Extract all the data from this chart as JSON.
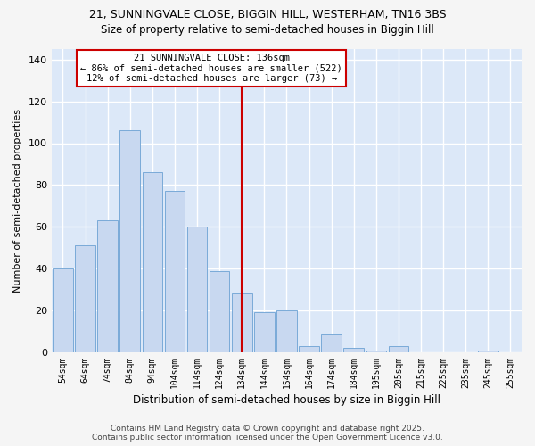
{
  "title1": "21, SUNNINGVALE CLOSE, BIGGIN HILL, WESTERHAM, TN16 3BS",
  "title2": "Size of property relative to semi-detached houses in Biggin Hill",
  "xlabel": "Distribution of semi-detached houses by size in Biggin Hill",
  "ylabel": "Number of semi-detached properties",
  "categories": [
    "54sqm",
    "64sqm",
    "74sqm",
    "84sqm",
    "94sqm",
    "104sqm",
    "114sqm",
    "124sqm",
    "134sqm",
    "144sqm",
    "154sqm",
    "164sqm",
    "174sqm",
    "184sqm",
    "195sqm",
    "205sqm",
    "215sqm",
    "225sqm",
    "235sqm",
    "245sqm",
    "255sqm"
  ],
  "values": [
    40,
    51,
    63,
    106,
    86,
    77,
    60,
    39,
    28,
    19,
    20,
    3,
    9,
    2,
    1,
    3,
    0,
    0,
    0,
    1,
    0
  ],
  "bar_color": "#c8d8f0",
  "bar_edge_color": "#7aaad8",
  "plot_bg_color": "#dce8f8",
  "fig_bg_color": "#f5f5f5",
  "grid_color": "#ffffff",
  "ylim": [
    0,
    145
  ],
  "yticks": [
    0,
    20,
    40,
    60,
    80,
    100,
    120,
    140
  ],
  "property_line_x": 8,
  "property_line_color": "#cc0000",
  "annotation_box_text": "21 SUNNINGVALE CLOSE: 136sqm\n← 86% of semi-detached houses are smaller (522)\n12% of semi-detached houses are larger (73) →",
  "annotation_box_color": "#ffffff",
  "annotation_box_edge_color": "#cc0000",
  "footnote": "Contains HM Land Registry data © Crown copyright and database right 2025.\nContains public sector information licensed under the Open Government Licence v3.0.",
  "title_fontsize": 9,
  "subtitle_fontsize": 8.5,
  "annotation_fontsize": 7.5,
  "footnote_fontsize": 6.5,
  "ylabel_fontsize": 8,
  "xlabel_fontsize": 8.5
}
